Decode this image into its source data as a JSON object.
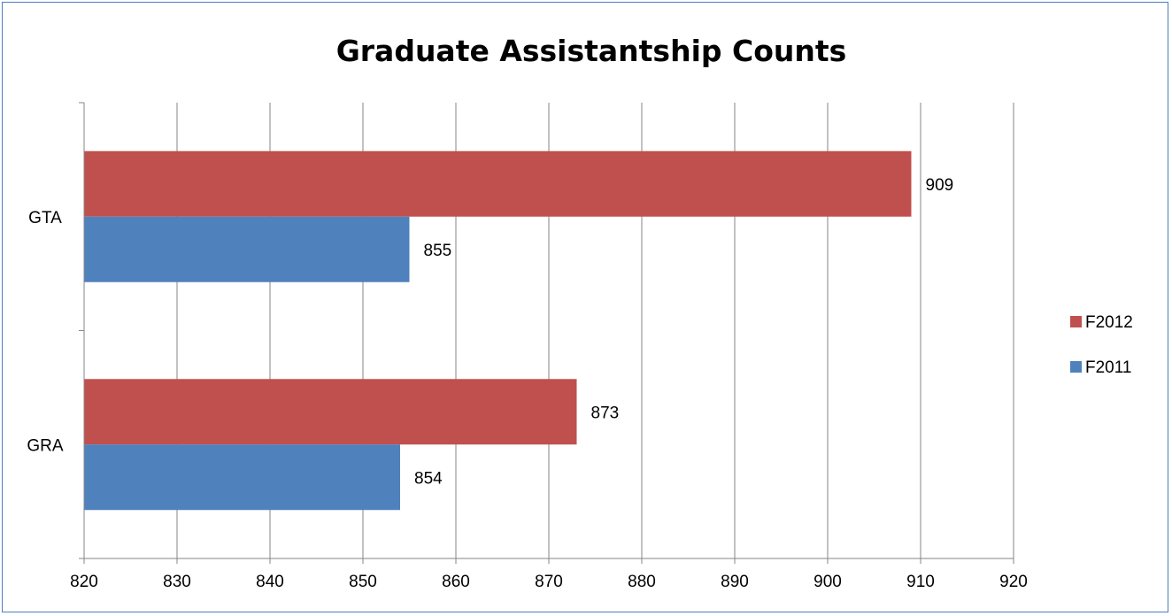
{
  "chart_data": {
    "type": "bar",
    "orientation": "horizontal",
    "title": "Graduate Assistantship Counts",
    "categories": [
      "GTA",
      "GRA"
    ],
    "series": [
      {
        "name": "F2012",
        "values": [
          909,
          873
        ],
        "color": "#c0504d"
      },
      {
        "name": "F2011",
        "values": [
          855,
          854
        ],
        "color": "#4f81bd"
      }
    ],
    "xlim": [
      820,
      920
    ],
    "x_ticks": [
      "820",
      "830",
      "840",
      "850",
      "860",
      "870",
      "880",
      "890",
      "900",
      "910",
      "920"
    ],
    "grid": "vertical",
    "legend": "right",
    "data_labels": true
  }
}
